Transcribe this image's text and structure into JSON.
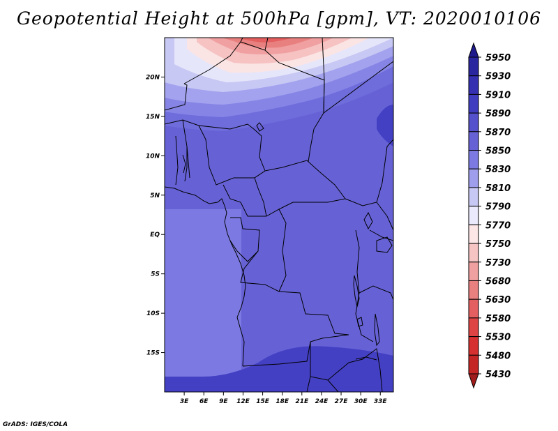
{
  "title": "Geopotential Height at 500hPa [gpm], VT: 2020010106",
  "credit": "GrADS: IGES/COLA",
  "map": {
    "lon_range": [
      0,
      35
    ],
    "lat_range": [
      -20,
      25
    ],
    "lon_ticks": [
      {
        "value": 3,
        "label": "3E"
      },
      {
        "value": 6,
        "label": "6E"
      },
      {
        "value": 9,
        "label": "9E"
      },
      {
        "value": 12,
        "label": "12E"
      },
      {
        "value": 15,
        "label": "15E"
      },
      {
        "value": 18,
        "label": "18E"
      },
      {
        "value": 21,
        "label": "21E"
      },
      {
        "value": 24,
        "label": "24E"
      },
      {
        "value": 27,
        "label": "27E"
      },
      {
        "value": 30,
        "label": "30E"
      },
      {
        "value": 33,
        "label": "33E"
      }
    ],
    "lat_ticks": [
      {
        "value": 20,
        "label": "20N"
      },
      {
        "value": 15,
        "label": "15N"
      },
      {
        "value": 10,
        "label": "10N"
      },
      {
        "value": 5,
        "label": "5N"
      },
      {
        "value": 0,
        "label": "EQ"
      },
      {
        "value": -5,
        "label": "5S"
      },
      {
        "value": -10,
        "label": "10S"
      },
      {
        "value": -15,
        "label": "15S"
      }
    ]
  },
  "colorbar": {
    "levels": [
      "5950",
      "5930",
      "5910",
      "5890",
      "5870",
      "5850",
      "5830",
      "5810",
      "5790",
      "5770",
      "5750",
      "5730",
      "5680",
      "5630",
      "5580",
      "5530",
      "5480",
      "5430"
    ],
    "colors": [
      "#1e1a8c",
      "#2a26a0",
      "#3530b2",
      "#3f3cc0",
      "#5550cc",
      "#6662d6",
      "#7c7ae2",
      "#9f9eec",
      "#c8c8f4",
      "#eaeafc",
      "#fde6e6",
      "#f7c4c4",
      "#f0a0a0",
      "#e98080",
      "#e46060",
      "#df4444",
      "#d63030",
      "#c42626",
      "#a01c1c"
    ]
  }
}
